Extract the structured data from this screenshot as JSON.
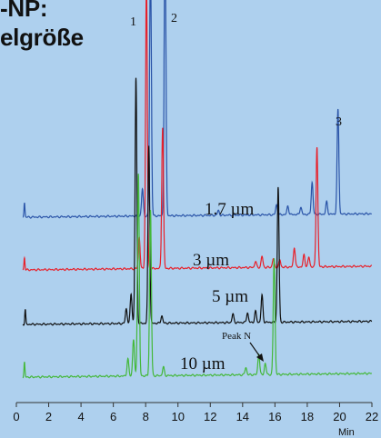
{
  "title_lines": [
    "-NP:",
    "elgröße"
  ],
  "chart_data": {
    "type": "line",
    "xlabel": "Min",
    "xlim": [
      0,
      22
    ],
    "xticks": [
      0,
      2,
      4,
      6,
      8,
      10,
      12,
      14,
      16,
      18,
      20,
      22
    ],
    "series": [
      {
        "name": "1.7 µm",
        "color": "#2a54a8",
        "baseline": 0.62,
        "drift": 0.28,
        "peaks": [
          [
            0.5,
            1.2
          ],
          [
            7.8,
            2.2
          ],
          [
            8.3,
            21.0
          ],
          [
            9.2,
            23.0
          ],
          [
            12.5,
            0.4
          ],
          [
            16.1,
            0.8
          ],
          [
            16.8,
            0.7
          ],
          [
            17.6,
            0.6
          ],
          [
            18.3,
            2.6
          ],
          [
            19.2,
            1.0
          ],
          [
            19.9,
            8.5
          ]
        ]
      },
      {
        "name": "3 µm",
        "color": "#e8202a",
        "baseline": 0.05,
        "drift": 0.3,
        "peaks": [
          [
            0.5,
            1.0
          ],
          [
            7.6,
            2.6
          ],
          [
            8.05,
            23.5
          ],
          [
            9.05,
            11.5
          ],
          [
            14.8,
            0.5
          ],
          [
            15.2,
            0.9
          ],
          [
            15.9,
            0.7
          ],
          [
            16.3,
            0.6
          ],
          [
            17.2,
            1.6
          ],
          [
            17.8,
            1.0
          ],
          [
            18.1,
            0.8
          ],
          [
            18.6,
            9.8
          ]
        ]
      },
      {
        "name": "5 µm",
        "color": "#101010",
        "baseline": -2.0,
        "drift": 0.25,
        "peaks": [
          [
            0.55,
            1.2
          ],
          [
            6.8,
            1.2
          ],
          [
            7.1,
            2.4
          ],
          [
            7.4,
            20.0
          ],
          [
            8.2,
            14.5
          ],
          [
            9.0,
            0.6
          ],
          [
            13.4,
            0.7
          ],
          [
            14.3,
            0.8
          ],
          [
            14.8,
            0.9
          ],
          [
            15.2,
            2.2
          ],
          [
            16.2,
            11.0
          ]
        ]
      },
      {
        "name": "10 µm",
        "color": "#44b83a",
        "baseline": -4.6,
        "drift": 0.3,
        "peaks": [
          [
            0.5,
            1.2
          ],
          [
            6.9,
            1.4
          ],
          [
            7.25,
            3.0
          ],
          [
            7.55,
            16.5
          ],
          [
            8.3,
            13.5
          ],
          [
            9.1,
            0.7
          ],
          [
            14.2,
            0.6
          ],
          [
            15.0,
            1.7
          ],
          [
            15.4,
            0.9
          ],
          [
            15.95,
            9.5
          ]
        ]
      }
    ],
    "peak_labels": [
      "1",
      "2",
      "3"
    ],
    "annotation": "Peak N"
  }
}
